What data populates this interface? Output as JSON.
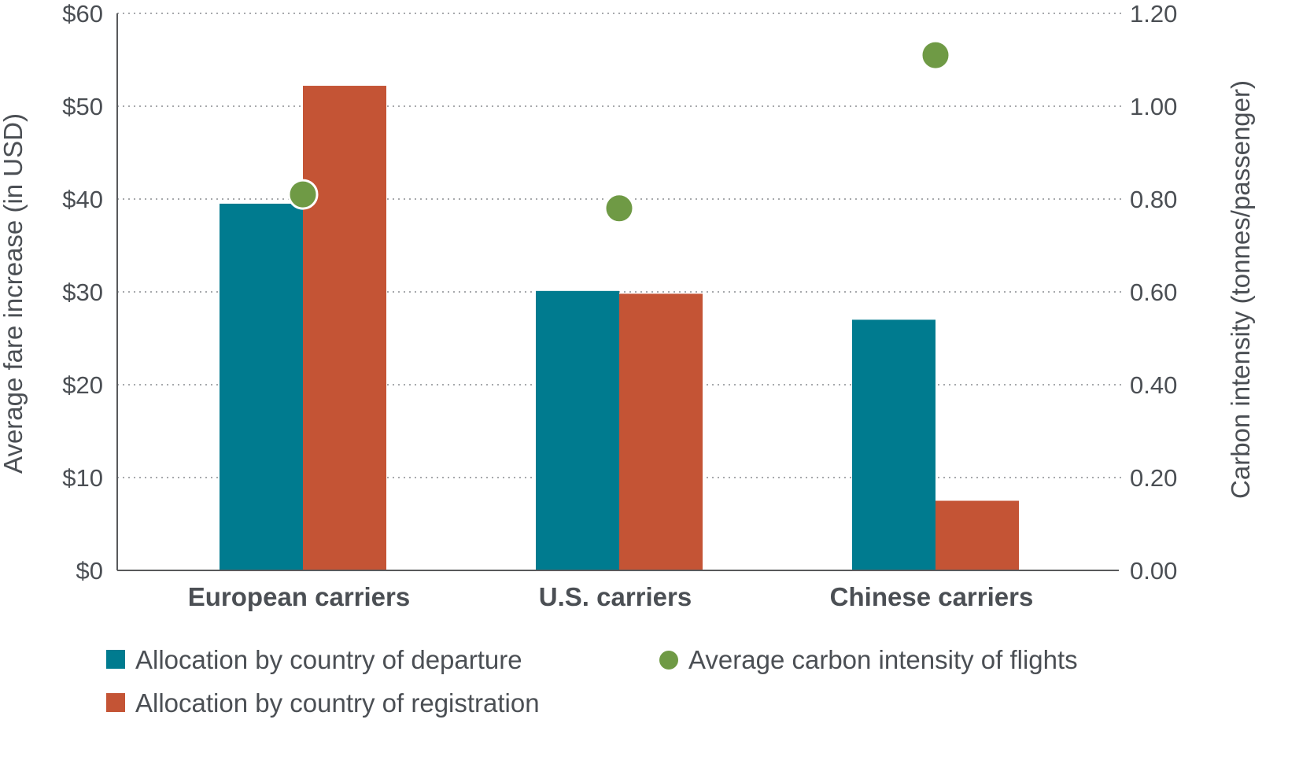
{
  "chart_data": {
    "type": "bar",
    "categories": [
      "European carriers",
      "U.S. carriers",
      "Chinese carriers"
    ],
    "series": [
      {
        "name": "Allocation by country of departure",
        "values": [
          39.5,
          30.1,
          27.0
        ],
        "color": "#007B8F",
        "axis": "left",
        "kind": "bar"
      },
      {
        "name": "Allocation by country of registration",
        "values": [
          52.2,
          29.8,
          7.5
        ],
        "color": "#C45435",
        "axis": "left",
        "kind": "bar"
      },
      {
        "name": "Average carbon intensity of flights",
        "values": [
          0.81,
          0.78,
          1.11
        ],
        "color": "#6F9A45",
        "axis": "right",
        "kind": "point"
      }
    ],
    "left_axis": {
      "label": "Average fare increase (in USD)",
      "ylim": [
        0,
        60
      ],
      "ticks": [
        0,
        10,
        20,
        30,
        40,
        50,
        60
      ],
      "tick_labels": [
        "$0",
        "$10",
        "$20",
        "$30",
        "$40",
        "$50",
        "$60"
      ]
    },
    "right_axis": {
      "label": "Carbon intensity (tonnes/passenger)",
      "ylim": [
        0,
        1.2
      ],
      "ticks": [
        0,
        0.2,
        0.4,
        0.6,
        0.8,
        1.0,
        1.2
      ],
      "tick_labels": [
        "0.00",
        "0.20",
        "0.40",
        "0.60",
        "0.80",
        "1.00",
        "1.20"
      ]
    },
    "grid": true,
    "grid_style": "dotted",
    "legend_position": "bottom"
  }
}
